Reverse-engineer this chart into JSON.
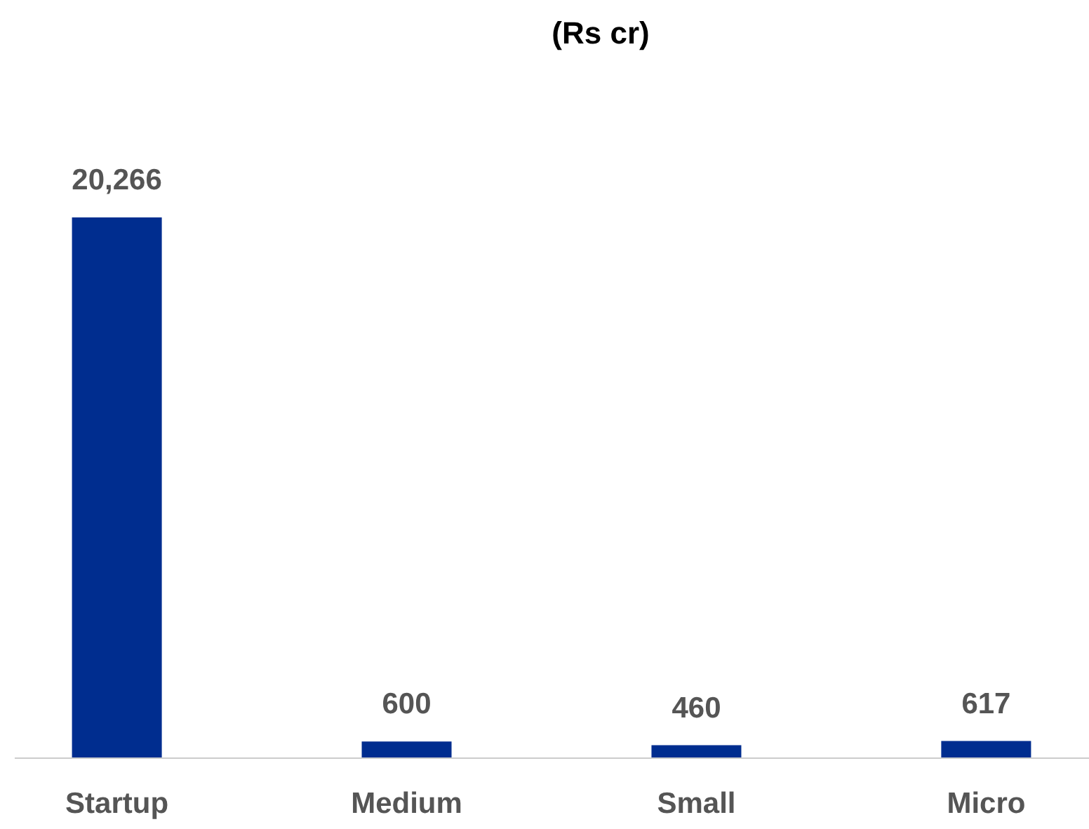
{
  "chart_data": {
    "type": "bar",
    "title": "(Rs cr)",
    "categories": [
      "Startup",
      "Medium",
      "Small",
      "Micro"
    ],
    "values": [
      20266,
      600,
      460,
      617
    ],
    "value_labels": [
      "20,266",
      "600",
      "460",
      "617"
    ],
    "color": "#002d8f",
    "grid": false
  }
}
